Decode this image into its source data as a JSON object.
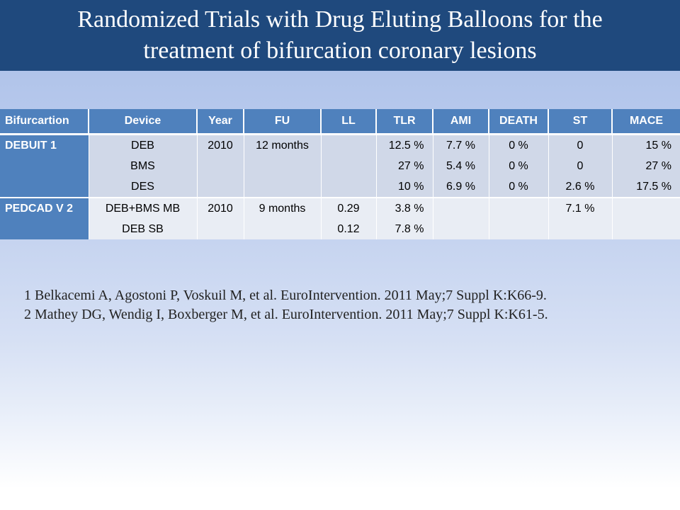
{
  "slide": {
    "title_line1": "Randomized Trials with Drug Eluting Balloons for the",
    "title_line2": "treatment of bifurcation coronary lesions"
  },
  "table": {
    "headers": [
      "Bifurcartion",
      "Device",
      "Year",
      "FU",
      "LL",
      "TLR",
      "AMI",
      "DEATH",
      "ST",
      "MACE"
    ],
    "rows": [
      {
        "study": "DEBUIT 1",
        "devices": [
          "DEB",
          "BMS",
          "DES"
        ],
        "year": "2010",
        "fu": "12 months",
        "ll": [
          "",
          "",
          ""
        ],
        "tlr": [
          "12.5 %",
          "27 %",
          "10 %"
        ],
        "ami": [
          "7.7 %",
          "5.4 %",
          "6.9 %"
        ],
        "death": [
          "0 %",
          "0 %",
          "0 %"
        ],
        "st": [
          "0",
          "0",
          "2.6 %"
        ],
        "mace": [
          "15 %",
          "27 %",
          "17.5 %"
        ]
      },
      {
        "study": "PEDCAD V 2",
        "devices": [
          "DEB+BMS MB",
          "DEB SB"
        ],
        "year": "2010",
        "fu": "9 months",
        "ll": [
          "0.29",
          "0.12"
        ],
        "tlr": [
          "3.8 %",
          "7.8 %"
        ],
        "ami": [
          "",
          ""
        ],
        "death": [
          "",
          ""
        ],
        "st": [
          "7.1 %",
          ""
        ],
        "mace": [
          "",
          ""
        ]
      }
    ]
  },
  "references": [
    "1 Belkacemi A, Agostoni P, Voskuil M, et al. EuroIntervention. 2011 May;7 Suppl K:K66-9.",
    "2 Mathey DG, Wendig I, Boxberger M, et al. EuroIntervention. 2011 May;7 Suppl K:K61-5."
  ]
}
